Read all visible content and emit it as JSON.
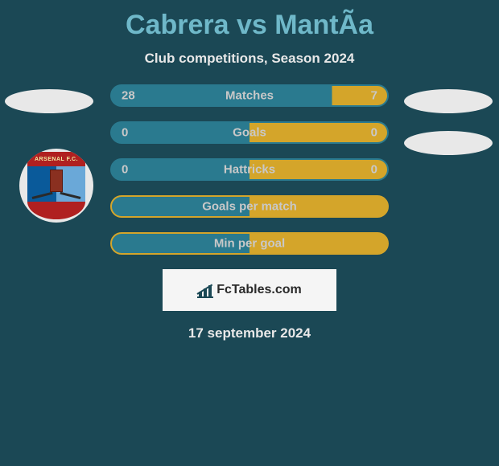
{
  "title": "Cabrera vs MantÃ­a",
  "subtitle": "Club competitions, Season 2024",
  "date": "17 september 2024",
  "logo_text": "FcTables.com",
  "colors": {
    "background": "#1b4855",
    "title": "#6fb8c9",
    "text": "#e8e8e8",
    "bar_left": "#2a7a8f",
    "bar_right": "#d4a52a",
    "oval": "#e8e8e8"
  },
  "crest": {
    "top_text": "ARSENAL F.C.",
    "top_color": "#b02020",
    "left_color": "#0a5a9a",
    "right_color": "#6aa8d8"
  },
  "bars": [
    {
      "label": "Matches",
      "left_value": "28",
      "right_value": "7",
      "left_pct": 80,
      "right_pct": 20,
      "border_color": "#2a7a8f",
      "left_color": "#2a7a8f",
      "right_color": "#d4a52a",
      "value_text_left": "#c8c8c8",
      "value_text_right": "#c8c8c8",
      "label_color": "#c8c8c8"
    },
    {
      "label": "Goals",
      "left_value": "0",
      "right_value": "0",
      "left_pct": 50,
      "right_pct": 50,
      "border_color": "#2a7a8f",
      "left_color": "#2a7a8f",
      "right_color": "#d4a52a",
      "value_text_left": "#c8c8c8",
      "value_text_right": "#c8c8c8",
      "label_color": "#c8c8c8"
    },
    {
      "label": "Hattricks",
      "left_value": "0",
      "right_value": "0",
      "left_pct": 50,
      "right_pct": 50,
      "border_color": "#2a7a8f",
      "left_color": "#2a7a8f",
      "right_color": "#d4a52a",
      "value_text_left": "#c8c8c8",
      "value_text_right": "#c8c8c8",
      "label_color": "#c8c8c8"
    },
    {
      "label": "Goals per match",
      "left_value": "",
      "right_value": "",
      "left_pct": 50,
      "right_pct": 50,
      "border_color": "#d4a52a",
      "left_color": "#2a7a8f",
      "right_color": "#d4a52a",
      "value_text_left": "#c8c8c8",
      "value_text_right": "#c8c8c8",
      "label_color": "#c8c8c8"
    },
    {
      "label": "Min per goal",
      "left_value": "",
      "right_value": "",
      "left_pct": 50,
      "right_pct": 50,
      "border_color": "#d4a52a",
      "left_color": "#2a7a8f",
      "right_color": "#d4a52a",
      "value_text_left": "#c8c8c8",
      "value_text_right": "#c8c8c8",
      "label_color": "#c8c8c8"
    }
  ]
}
